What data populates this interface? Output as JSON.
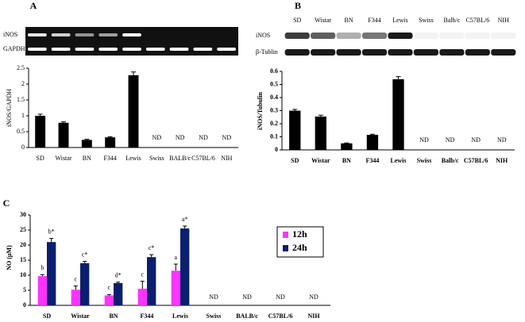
{
  "chart_data": [
    {
      "type": "bar",
      "panel_label": "A",
      "gel_rows": [
        "iNOS",
        "GAPDH"
      ],
      "y_label": "iNOS/GAPDH",
      "categories": [
        "SD",
        "Wistar",
        "BN",
        "F344",
        "Lewis",
        "Swiss",
        "BALB/c",
        "C57BL/6",
        "NIH"
      ],
      "series": [
        {
          "color": "#000000",
          "values": [
            1.0,
            0.78,
            0.24,
            0.32,
            2.28,
            null,
            null,
            null,
            null
          ],
          "errors": [
            0.05,
            0.03,
            0.02,
            0.02,
            0.1,
            null,
            null,
            null,
            null
          ],
          "value_labels": [
            null,
            null,
            null,
            null,
            null,
            "ND",
            "ND",
            "ND",
            "ND"
          ]
        }
      ],
      "ylim": [
        0,
        2.5
      ],
      "yticks": [
        0,
        0.5,
        1,
        1.5,
        2,
        2.5
      ]
    },
    {
      "type": "bar",
      "panel_label": "B",
      "gel_rows": [
        "iNOS",
        "β-Tublin"
      ],
      "y_label": "iNOS/Tubulin",
      "categories": [
        "SD",
        "Wistar",
        "BN",
        "F344",
        "Lewis",
        "Swiss",
        "Balb/c",
        "C57BL/6",
        "NIH"
      ],
      "series": [
        {
          "color": "#000000",
          "values": [
            0.3,
            0.255,
            0.05,
            0.115,
            0.54,
            null,
            null,
            null,
            null
          ],
          "errors": [
            0.01,
            0.01,
            0.003,
            0.005,
            0.02,
            null,
            null,
            null,
            null
          ],
          "value_labels": [
            null,
            null,
            null,
            null,
            null,
            "ND",
            "ND",
            "ND",
            "ND"
          ]
        }
      ],
      "ylim": [
        0,
        0.6
      ],
      "yticks": [
        0,
        0.1,
        0.2,
        0.3,
        0.4,
        0.5,
        0.6
      ]
    },
    {
      "type": "grouped_bar",
      "panel_label": "C",
      "y_label": "NO (µM)",
      "categories": [
        "SD",
        "Wistar",
        "BN",
        "F344",
        "Lewis",
        "Swiss",
        "BALB/c",
        "C57BL/6",
        "NIH"
      ],
      "series": [
        {
          "name": "12h",
          "color": "#ff33ff",
          "values": [
            9.7,
            5.2,
            3.3,
            5.5,
            11.5,
            null,
            null,
            null,
            null
          ],
          "errors": [
            0.5,
            1.2,
            0.3,
            2.5,
            2.2,
            null,
            null,
            null,
            null
          ],
          "value_labels": [
            "b",
            "c",
            "c",
            "c",
            "a",
            null,
            null,
            null,
            null
          ]
        },
        {
          "name": "24h",
          "color": "#0a1f6e",
          "values": [
            21,
            14,
            7.4,
            16,
            25.5,
            null,
            null,
            null,
            null
          ],
          "errors": [
            1.2,
            0.6,
            0.3,
            0.8,
            0.8,
            null,
            null,
            null,
            null
          ],
          "value_labels": [
            "b*",
            "c*",
            "d*",
            "c*",
            "a*",
            null,
            null,
            null,
            null
          ]
        }
      ],
      "value_labels": [
        null,
        null,
        null,
        null,
        null,
        "ND",
        "ND",
        "ND",
        "ND"
      ],
      "ylim": [
        0,
        30
      ],
      "yticks": [
        0,
        5,
        10,
        15,
        20,
        25,
        30
      ]
    }
  ]
}
